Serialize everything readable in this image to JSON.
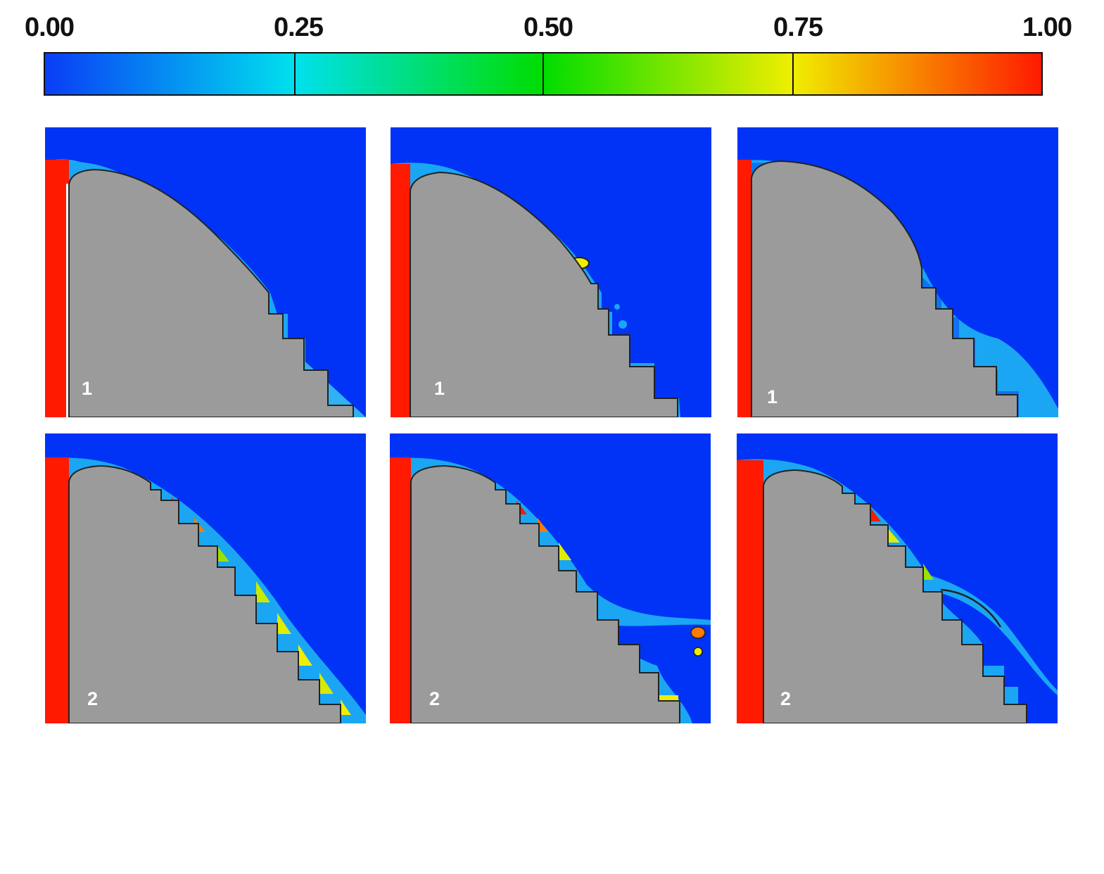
{
  "colorbar": {
    "ticks": [
      "0.00",
      "0.25",
      "0.50",
      "0.75",
      "1.00"
    ],
    "colors": [
      "#0a3df5",
      "#00e0ee",
      "#00dd00",
      "#f0ee00",
      "#ff1a00"
    ]
  },
  "panels": [
    {
      "label": "1"
    },
    {
      "label": "1"
    },
    {
      "label": "1"
    },
    {
      "label": "2"
    },
    {
      "label": "2"
    },
    {
      "label": "2"
    }
  ],
  "colors": {
    "background_fluid": "#0033f5",
    "solid": "#9b9b9b",
    "inlet": "#ff1a00"
  }
}
